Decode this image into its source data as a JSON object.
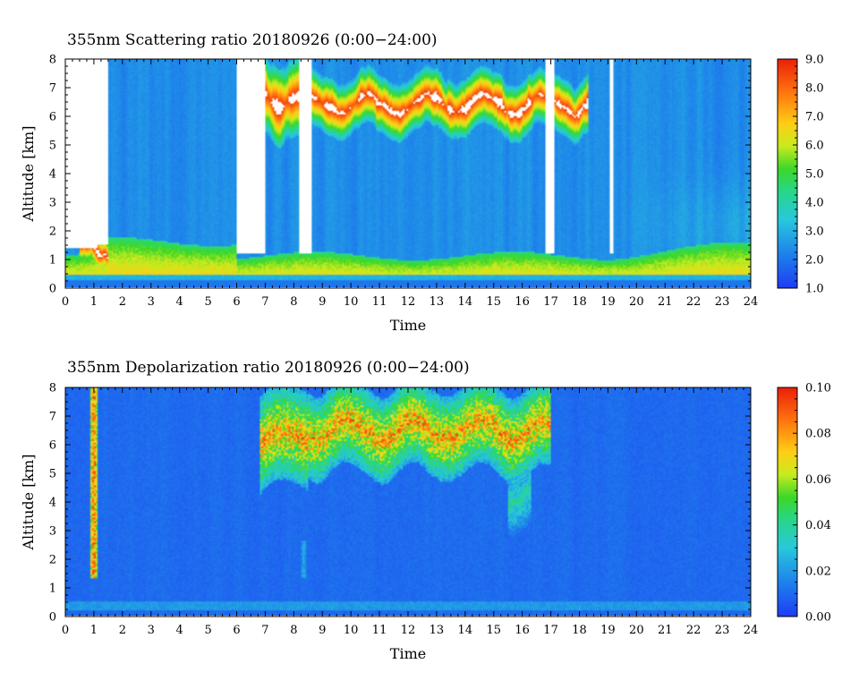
{
  "chart_data": [
    {
      "type": "heatmap",
      "title": "355nm Scattering ratio  20180926 (0:00−24:00)",
      "xlabel": "Time",
      "ylabel": "Altitude [km]",
      "xlim": [
        0,
        24
      ],
      "ylim": [
        0,
        8
      ],
      "x_ticks": [
        "0",
        "1",
        "2",
        "3",
        "4",
        "5",
        "6",
        "7",
        "8",
        "9",
        "10",
        "11",
        "12",
        "13",
        "14",
        "15",
        "16",
        "17",
        "18",
        "19",
        "20",
        "21",
        "22",
        "23",
        "24"
      ],
      "y_ticks": [
        "0",
        "1",
        "2",
        "3",
        "4",
        "5",
        "6",
        "7",
        "8"
      ],
      "colorbar": {
        "range": [
          1.0,
          9.0
        ],
        "ticks": [
          "1.0",
          "2.0",
          "3.0",
          "4.0",
          "5.0",
          "6.0",
          "7.0",
          "8.0",
          "9.0"
        ],
        "saturated_color": "#ffffff"
      },
      "features": {
        "background_value": 2.4,
        "boundary_layer": {
          "top_km": 1.1,
          "value_at_top": 4.2,
          "value_near_surface": 7.0
        },
        "no_data_gaps_hours": [
          [
            0.0,
            1.5
          ],
          [
            6.0,
            7.0
          ],
          [
            8.2,
            8.6
          ],
          [
            16.8,
            17.1
          ],
          [
            19.05,
            19.2
          ]
        ],
        "cloud_layers": [
          {
            "time": [
              6.7,
              8.3
            ],
            "altitude_km": [
              5.6,
              7.8
            ],
            "peak": 9.0
          },
          {
            "time": [
              8.6,
              18.3
            ],
            "altitude_km": [
              5.6,
              7.2
            ],
            "peak": 9.0
          },
          {
            "time": [
              0.5,
              1.5
            ],
            "altitude_km": [
              0.8,
              1.9
            ],
            "peak": 9.0
          }
        ]
      }
    },
    {
      "type": "heatmap",
      "title": "355nm Depolarization ratio  20180926 (0:00−24:00)",
      "xlabel": "Time",
      "ylabel": "Altitude [km]",
      "xlim": [
        0,
        24
      ],
      "ylim": [
        0,
        8
      ],
      "x_ticks": [
        "0",
        "1",
        "2",
        "3",
        "4",
        "5",
        "6",
        "7",
        "8",
        "9",
        "10",
        "11",
        "12",
        "13",
        "14",
        "15",
        "16",
        "17",
        "18",
        "19",
        "20",
        "21",
        "22",
        "23",
        "24"
      ],
      "y_ticks": [
        "0",
        "1",
        "2",
        "3",
        "4",
        "5",
        "6",
        "7",
        "8"
      ],
      "colorbar": {
        "range": [
          0.0,
          0.1
        ],
        "ticks": [
          "0.00",
          "0.02",
          "0.04",
          "0.06",
          "0.08",
          "0.10"
        ]
      },
      "features": {
        "background_value": 0.01,
        "surface_band": {
          "altitude_km": [
            0.2,
            0.5
          ],
          "value": 0.02
        },
        "aerosol_columns": [
          {
            "time": [
              0.85,
              1.15
            ],
            "altitude_km": [
              1.3,
              8.0
            ],
            "peak": 0.1
          },
          {
            "time": [
              8.25,
              8.45
            ],
            "altitude_km": [
              1.3,
              2.6
            ],
            "peak": 0.03
          }
        ],
        "cloud_layers": [
          {
            "time": [
              6.8,
              8.5
            ],
            "altitude_km": [
              4.5,
              7.9
            ],
            "peak": 0.1
          },
          {
            "time": [
              8.5,
              17.0
            ],
            "altitude_km": [
              5.0,
              8.0
            ],
            "peak": 0.1
          },
          {
            "time": [
              15.5,
              16.3
            ],
            "altitude_km": [
              3.2,
              5.5
            ],
            "peak": 0.05
          }
        ]
      }
    }
  ]
}
